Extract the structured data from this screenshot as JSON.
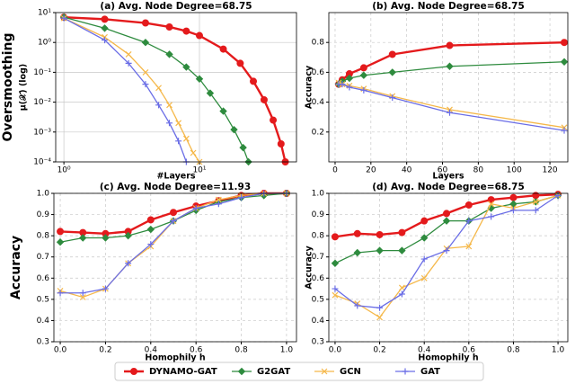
{
  "chart_data": [
    {
      "type": "line",
      "title": "(a) Avg. Node Degree=68.75",
      "xlabel": "#Layers",
      "ylabel": "μ(𝒳) (log)",
      "ylabel_outer": "Oversmoothing",
      "xlog": true,
      "ylog": true,
      "grid": "solid",
      "legend": "bottom",
      "xlim": [
        0.87,
        52
      ],
      "ylim": [
        0.0001,
        10
      ],
      "xticks": [
        {
          "value": 1,
          "label": "10⁰"
        },
        {
          "value": 10,
          "label": "10¹"
        }
      ],
      "yticks": [
        {
          "value": 10,
          "label": "10¹"
        },
        {
          "value": 1,
          "label": "10⁰"
        },
        {
          "value": 0.1,
          "label": "10⁻¹"
        },
        {
          "value": 0.01,
          "label": "10⁻²"
        },
        {
          "value": 0.001,
          "label": "10⁻³"
        },
        {
          "value": 0.0001,
          "label": "10⁻⁴"
        }
      ],
      "series": [
        {
          "name": "DYNAMO-GAT",
          "color": "#e41a1c",
          "marker": "circle",
          "x": [
            1,
            2,
            4,
            6,
            8,
            10,
            15,
            20,
            25,
            30,
            35,
            40,
            43
          ],
          "values": [
            7,
            6,
            4.5,
            3.3,
            2.4,
            1.7,
            0.6,
            0.2,
            0.05,
            0.012,
            0.0025,
            0.0004,
            0.0001
          ]
        },
        {
          "name": "G2GAT",
          "color": "#2e8b3e",
          "marker": "diamond",
          "x": [
            1,
            2,
            4,
            6,
            8,
            10,
            12,
            15,
            18,
            21,
            23
          ],
          "values": [
            7,
            3,
            1,
            0.4,
            0.15,
            0.06,
            0.02,
            0.005,
            0.0012,
            0.0003,
            0.0001
          ]
        },
        {
          "name": "GCN",
          "color": "#f5b84a",
          "marker": "x",
          "x": [
            1,
            2,
            3,
            4,
            5,
            6,
            7,
            8,
            9,
            10
          ],
          "values": [
            6.5,
            1.5,
            0.4,
            0.1,
            0.03,
            0.008,
            0.002,
            0.0006,
            0.0002,
            0.0001
          ]
        },
        {
          "name": "GAT",
          "color": "#6a6de6",
          "marker": "plus",
          "x": [
            1,
            2,
            3,
            4,
            5,
            6,
            7,
            8
          ],
          "values": [
            6.5,
            1.2,
            0.2,
            0.04,
            0.008,
            0.002,
            0.0005,
            0.0001
          ]
        }
      ]
    },
    {
      "type": "line",
      "title": "(b) Avg. Node Degree=68.75",
      "xlabel": "Layers",
      "ylabel": "Accuracy",
      "grid": "dashed",
      "xlim": [
        -3.5,
        130
      ],
      "ylim": [
        0,
        1
      ],
      "xticks": [
        0,
        20,
        40,
        60,
        80,
        100,
        120
      ],
      "yticks": [
        0.2,
        0.4,
        0.6,
        0.8
      ],
      "x": [
        2,
        4,
        8,
        16,
        32,
        64,
        128
      ],
      "series": [
        {
          "name": "DYNAMO-GAT",
          "color": "#e41a1c",
          "marker": "circle",
          "values": [
            0.52,
            0.55,
            0.59,
            0.63,
            0.72,
            0.78,
            0.8
          ]
        },
        {
          "name": "G2GAT",
          "color": "#2e8b3e",
          "marker": "diamond",
          "values": [
            0.52,
            0.54,
            0.56,
            0.58,
            0.6,
            0.64,
            0.67
          ]
        },
        {
          "name": "GCN",
          "color": "#f5b84a",
          "marker": "x",
          "values": [
            0.53,
            0.52,
            0.51,
            0.49,
            0.44,
            0.35,
            0.23
          ]
        },
        {
          "name": "GAT",
          "color": "#6a6de6",
          "marker": "plus",
          "values": [
            0.52,
            0.52,
            0.5,
            0.48,
            0.43,
            0.33,
            0.21
          ]
        }
      ]
    },
    {
      "type": "line",
      "title": "(c) Avg. Node Degree=11.93",
      "xlabel": "Homophily h",
      "ylabel": "Accuracy",
      "grid": "dashed",
      "xlim": [
        -0.028,
        1.044
      ],
      "ylim": [
        0.3,
        1.0
      ],
      "xticks": [
        {
          "value": 0,
          "label": "0.0"
        },
        {
          "value": 0.2,
          "label": "0.2"
        },
        {
          "value": 0.4,
          "label": "0.4"
        },
        {
          "value": 0.6,
          "label": "0.6"
        },
        {
          "value": 0.8,
          "label": "0.8"
        },
        {
          "value": 1,
          "label": "1.0"
        }
      ],
      "yticks": [
        0.3,
        0.4,
        0.5,
        0.6,
        0.7,
        0.8,
        0.9,
        {
          "value": 1,
          "label": "1.0"
        }
      ],
      "x": [
        0,
        0.1,
        0.2,
        0.3,
        0.4,
        0.5,
        0.6,
        0.7,
        0.8,
        0.9,
        1
      ],
      "series": [
        {
          "name": "DYNAMO-GAT",
          "color": "#e41a1c",
          "marker": "circle",
          "values": [
            0.82,
            0.815,
            0.81,
            0.82,
            0.875,
            0.91,
            0.94,
            0.965,
            0.99,
            1.0,
            1.0
          ]
        },
        {
          "name": "G2GAT",
          "color": "#2e8b3e",
          "marker": "diamond",
          "values": [
            0.77,
            0.79,
            0.79,
            0.8,
            0.83,
            0.87,
            0.92,
            0.96,
            0.98,
            0.99,
            1.0
          ]
        },
        {
          "name": "GCN",
          "color": "#f5b84a",
          "marker": "x",
          "values": [
            0.54,
            0.51,
            0.55,
            0.67,
            0.75,
            0.87,
            0.93,
            0.97,
            0.99,
            1.0,
            1.0
          ]
        },
        {
          "name": "GAT",
          "color": "#6a6de6",
          "marker": "plus",
          "values": [
            0.53,
            0.53,
            0.55,
            0.67,
            0.76,
            0.87,
            0.93,
            0.95,
            0.98,
            1.0,
            1.0
          ]
        }
      ]
    },
    {
      "type": "line",
      "title": "(d) Avg. Node Degree=68.75",
      "xlabel": "Homophily h",
      "ylabel": "Accuracy",
      "grid": "dashed",
      "xlim": [
        -0.028,
        1.044
      ],
      "ylim": [
        0.3,
        1.0
      ],
      "xticks": [
        {
          "value": 0,
          "label": "0.0"
        },
        {
          "value": 0.2,
          "label": "0.2"
        },
        {
          "value": 0.4,
          "label": "0.4"
        },
        {
          "value": 0.6,
          "label": "0.6"
        },
        {
          "value": 0.8,
          "label": "0.8"
        },
        {
          "value": 1,
          "label": "1.0"
        }
      ],
      "yticks": [
        0.3,
        0.4,
        0.5,
        0.6,
        0.7,
        0.8,
        0.9,
        {
          "value": 1,
          "label": "1.0"
        }
      ],
      "x": [
        0,
        0.1,
        0.2,
        0.3,
        0.4,
        0.5,
        0.6,
        0.7,
        0.8,
        0.9,
        1
      ],
      "series": [
        {
          "name": "DYNAMO-GAT",
          "color": "#e41a1c",
          "marker": "circle",
          "values": [
            0.795,
            0.81,
            0.805,
            0.815,
            0.87,
            0.905,
            0.945,
            0.97,
            0.98,
            0.99,
            0.995
          ]
        },
        {
          "name": "G2GAT",
          "color": "#2e8b3e",
          "marker": "diamond",
          "values": [
            0.67,
            0.72,
            0.73,
            0.73,
            0.79,
            0.87,
            0.87,
            0.93,
            0.95,
            0.96,
            0.99
          ]
        },
        {
          "name": "GCN",
          "color": "#f5b84a",
          "marker": "x",
          "values": [
            0.52,
            0.48,
            0.415,
            0.555,
            0.6,
            0.74,
            0.75,
            0.95,
            0.93,
            0.96,
            0.99
          ]
        },
        {
          "name": "GAT",
          "color": "#6a6de6",
          "marker": "plus",
          "values": [
            0.55,
            0.47,
            0.46,
            0.525,
            0.69,
            0.73,
            0.87,
            0.89,
            0.92,
            0.92,
            0.99
          ]
        }
      ]
    }
  ]
}
